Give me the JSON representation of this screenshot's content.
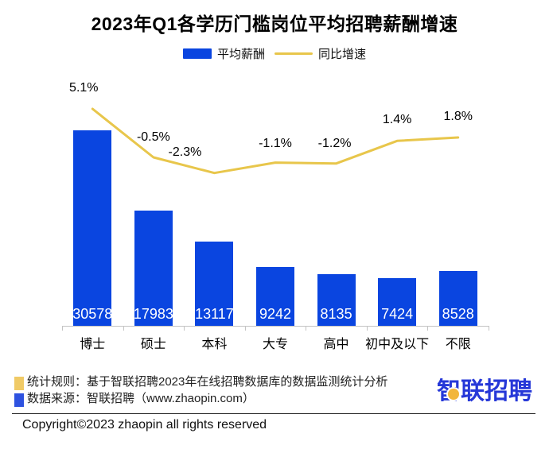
{
  "title": "2023年Q1各学历门槛岗位平均招聘薪酬增速",
  "legend": [
    {
      "label": "平均薪酬",
      "type": "bar",
      "color": "#0a45e0"
    },
    {
      "label": "同比增速",
      "type": "line",
      "color": "#e8c64b"
    }
  ],
  "chart_data": {
    "type": "bar",
    "title": "2023年Q1各学历门槛岗位平均招聘薪酬增速",
    "categories": [
      "博士",
      "硕士",
      "本科",
      "大专",
      "高中",
      "初中及以下",
      "不限"
    ],
    "series": [
      {
        "name": "平均薪酬",
        "type": "bar",
        "values": [
          30578,
          17983,
          13117,
          9242,
          8135,
          7424,
          8528
        ],
        "color": "#0a45e0"
      },
      {
        "name": "同比增速",
        "type": "line",
        "values": [
          5.1,
          -0.5,
          -2.3,
          -1.1,
          -1.2,
          1.4,
          1.8
        ],
        "labels": [
          "5.1%",
          "-0.5%",
          "-2.3%",
          "-1.1%",
          "-1.2%",
          "1.4%",
          "1.8%"
        ],
        "color": "#e8c64b"
      }
    ],
    "xlabel": "",
    "ylabel": "",
    "grid": false,
    "legend_position": "top",
    "value_labels_inside_bars": true
  },
  "footer": {
    "notes": [
      {
        "marker_color": "#f0ca66",
        "text": "统计规则：基于智联招聘2023年在线招聘数据库的数据监测统计分析"
      },
      {
        "marker_color": "#2e52e0",
        "text": "数据来源：智联招聘（www.zhaopin.com）"
      }
    ],
    "logo_text": "智联招聘",
    "logo_color": "#2638d8",
    "logo_dot_color": "#f2b63c",
    "copyright": "Copyright©2023 zhaopin all rights reserved"
  }
}
